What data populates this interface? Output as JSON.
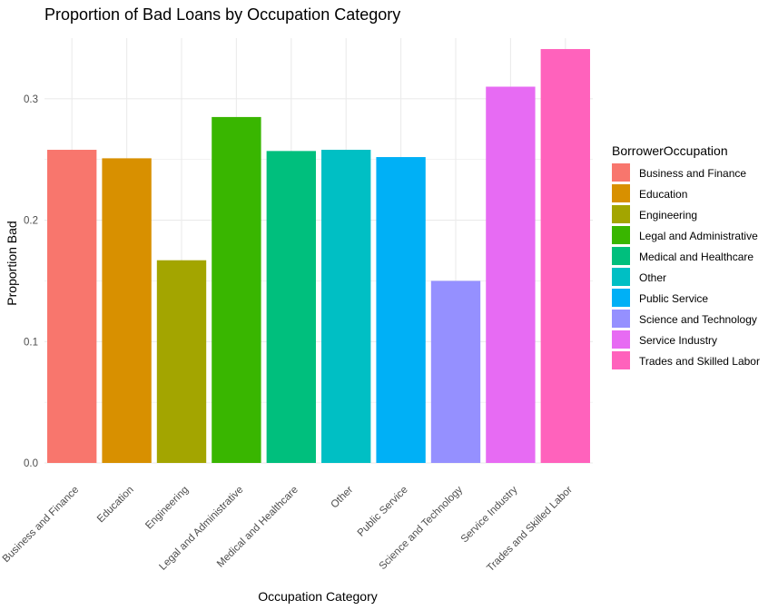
{
  "chart_data": {
    "type": "bar",
    "title": "Proportion of Bad Loans by Occupation Category",
    "xlabel": "Occupation Category",
    "ylabel": "Proportion Bad",
    "ylim": [
      0,
      0.35
    ],
    "yticks": [
      "0.0",
      "0.1",
      "0.2",
      "0.3"
    ],
    "grid": true,
    "legend": {
      "title": "BorrowerOccupation",
      "placement": "right"
    },
    "categories": [
      "Business and Finance",
      "Education",
      "Engineering",
      "Legal and Administrative",
      "Medical and Healthcare",
      "Other",
      "Public Service",
      "Science and Technology",
      "Service Industry",
      "Trades and Skilled Labor"
    ],
    "values": [
      0.258,
      0.251,
      0.167,
      0.285,
      0.257,
      0.258,
      0.252,
      0.15,
      0.31,
      0.341
    ],
    "colors": [
      "#F8766D",
      "#D89000",
      "#A3A500",
      "#39B600",
      "#00BF7D",
      "#00BFC4",
      "#00B0F6",
      "#9590FF",
      "#E76BF3",
      "#FF62BC"
    ]
  }
}
